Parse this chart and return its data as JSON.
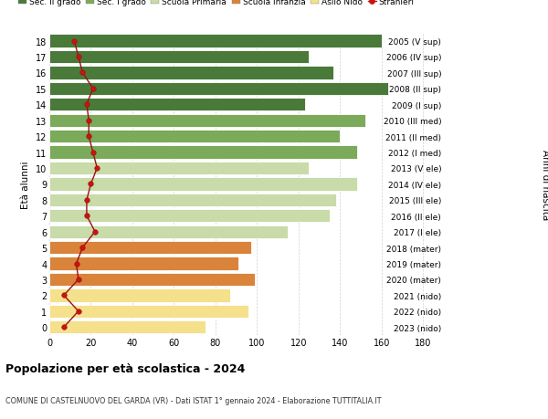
{
  "ages": [
    0,
    1,
    2,
    3,
    4,
    5,
    6,
    7,
    8,
    9,
    10,
    11,
    12,
    13,
    14,
    15,
    16,
    17,
    18
  ],
  "bar_values": [
    75,
    96,
    87,
    99,
    91,
    97,
    115,
    135,
    138,
    148,
    125,
    148,
    140,
    152,
    123,
    163,
    137,
    125,
    160
  ],
  "stranieri_values": [
    7,
    14,
    7,
    14,
    13,
    16,
    22,
    18,
    18,
    20,
    23,
    21,
    19,
    19,
    18,
    21,
    16,
    14,
    12
  ],
  "right_labels": [
    "2023 (nido)",
    "2022 (nido)",
    "2021 (nido)",
    "2020 (mater)",
    "2019 (mater)",
    "2018 (mater)",
    "2017 (I ele)",
    "2016 (II ele)",
    "2015 (III ele)",
    "2014 (IV ele)",
    "2013 (V ele)",
    "2012 (I med)",
    "2011 (II med)",
    "2010 (III med)",
    "2009 (I sup)",
    "2008 (II sup)",
    "2007 (III sup)",
    "2006 (IV sup)",
    "2005 (V sup)"
  ],
  "bar_colors": [
    "#f5e08c",
    "#f5e08c",
    "#f5e08c",
    "#d9843a",
    "#d9843a",
    "#d9843a",
    "#c8dba8",
    "#c8dba8",
    "#c8dba8",
    "#c8dba8",
    "#c8dba8",
    "#7aaa5a",
    "#7aaa5a",
    "#7aaa5a",
    "#4a7a3a",
    "#4a7a3a",
    "#4a7a3a",
    "#4a7a3a",
    "#4a7a3a"
  ],
  "legend_labels": [
    "Sec. II grado",
    "Sec. I grado",
    "Scuola Primaria",
    "Scuola Infanzia",
    "Asilo Nido",
    "Stranieri"
  ],
  "legend_colors": [
    "#4a7a3a",
    "#7aaa5a",
    "#c8dba8",
    "#d9843a",
    "#f5e08c",
    "#cc1111"
  ],
  "ylabel": "Età alunni",
  "right_axis_label": "Anni di nascita",
  "title": "Popolazione per età scolastica - 2024",
  "subtitle": "COMUNE DI CASTELNUOVO DEL GARDA (VR) - Dati ISTAT 1° gennaio 2024 - Elaborazione TUTTITALIA.IT",
  "xlim": [
    0,
    190
  ],
  "xticks": [
    0,
    20,
    40,
    60,
    80,
    100,
    120,
    140,
    160,
    180
  ],
  "background_color": "#ffffff",
  "bar_height": 0.82,
  "grid_color": "#d0d0d0"
}
